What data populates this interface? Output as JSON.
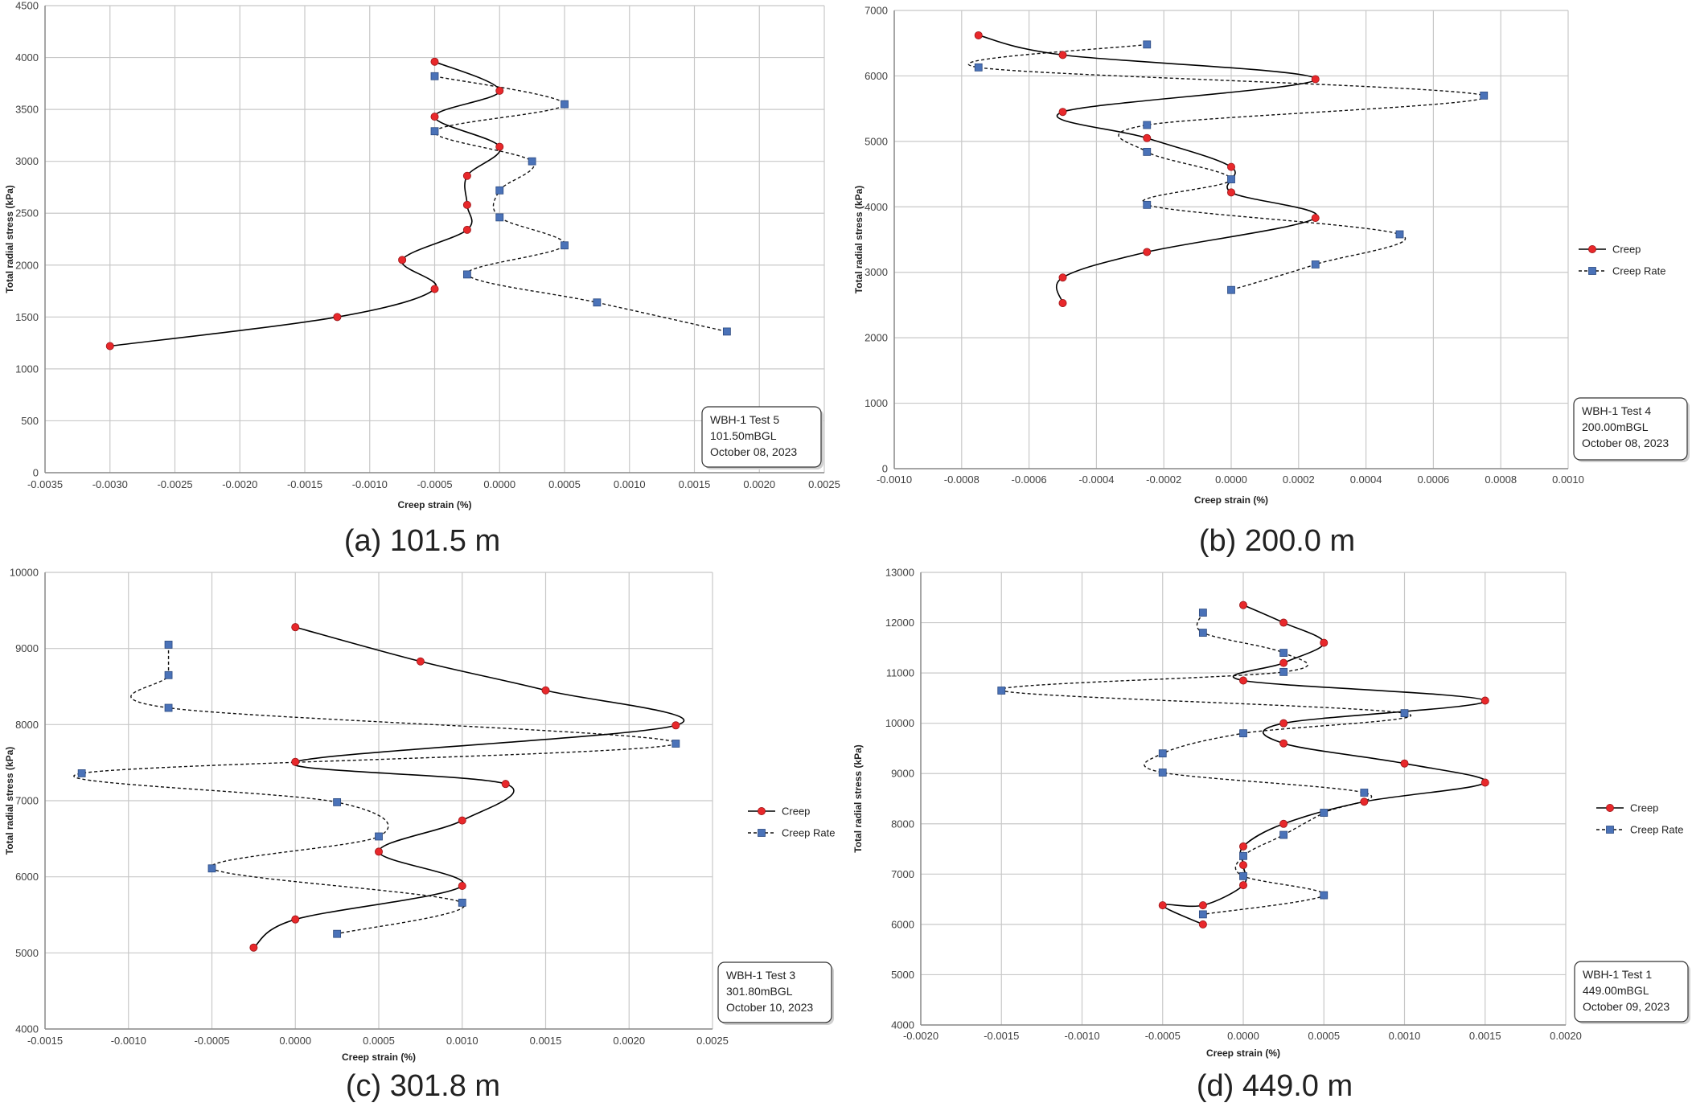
{
  "chart_data": [
    {
      "id": "a",
      "type": "line",
      "caption": "(a) 101.5 m",
      "xlabel": "Creep strain (%)",
      "ylabel": "Total radial stress (kPa)",
      "xlim": [
        -0.0035,
        0.0025
      ],
      "ylim": [
        0,
        4500
      ],
      "xticks": [
        -0.0035,
        -0.003,
        -0.0025,
        -0.002,
        -0.0015,
        -0.001,
        -0.0005,
        0.0,
        0.0005,
        0.001,
        0.0015,
        0.002,
        0.0025
      ],
      "xtick_labels": [
        "-0.0035",
        "-0.0030",
        "-0.0025",
        "-0.0020",
        "-0.0015",
        "-0.0010",
        "-0.0005",
        "0.0000",
        "0.0005",
        "0.0010",
        "0.0015",
        "0.0020",
        "0.0025"
      ],
      "yticks": [
        0,
        500,
        1000,
        1500,
        2000,
        2500,
        3000,
        3500,
        4000,
        4500
      ],
      "ytick_labels": [
        "0",
        "500",
        "1000",
        "1500",
        "2000",
        "2500",
        "3000",
        "3500",
        "4000",
        "4500"
      ],
      "info_box": [
        "WBH-1 Test 5",
        "101.50mBGL",
        "October 08, 2023"
      ],
      "legend": null,
      "series": [
        {
          "name": "Creep",
          "x": [
            -0.0005,
            0.0,
            -0.0005,
            0.0,
            -0.00025,
            -0.00025,
            -0.00025,
            -0.00075,
            -0.0005,
            -0.00125,
            -0.003
          ],
          "y": [
            3960,
            3680,
            3430,
            3140,
            2860,
            2580,
            2340,
            2050,
            1770,
            1500,
            1220
          ]
        },
        {
          "name": "Creep Rate",
          "x": [
            -0.0005,
            0.0005,
            -0.0005,
            0.00025,
            0.0,
            0.0,
            0.0005,
            -0.00025,
            0.00075,
            0.00175
          ],
          "y": [
            3820,
            3550,
            3290,
            3000,
            2720,
            2460,
            2190,
            1910,
            1640,
            1360
          ]
        }
      ]
    },
    {
      "id": "b",
      "type": "line",
      "caption": "(b) 200.0 m",
      "xlabel": "Creep strain (%)",
      "ylabel": "Total radial stress (kPa)",
      "xlim": [
        -0.001,
        0.001
      ],
      "ylim": [
        0,
        7000
      ],
      "xticks": [
        -0.001,
        -0.0008,
        -0.0006,
        -0.0004,
        -0.0002,
        0.0,
        0.0002,
        0.0004,
        0.0006,
        0.0008,
        0.001
      ],
      "xtick_labels": [
        "-0.0010",
        "-0.0008",
        "-0.0006",
        "-0.0004",
        "-0.0002",
        "0.0000",
        "0.0002",
        "0.0004",
        "0.0006",
        "0.0008",
        "0.0010"
      ],
      "yticks": [
        0,
        1000,
        2000,
        3000,
        4000,
        5000,
        6000,
        7000
      ],
      "ytick_labels": [
        "0",
        "1000",
        "2000",
        "3000",
        "4000",
        "5000",
        "6000",
        "7000"
      ],
      "info_box": [
        "WBH-1 Test 4",
        "200.00mBGL",
        "October 08, 2023"
      ],
      "legend": {
        "creep": "Creep",
        "rate": "Creep Rate"
      },
      "series": [
        {
          "name": "Creep",
          "x": [
            -0.00075,
            -0.0005,
            0.00025,
            -0.0005,
            -0.00025,
            0.0,
            0.0,
            0.00025,
            -0.00025,
            -0.0005,
            -0.0005
          ],
          "y": [
            6620,
            6320,
            5950,
            5450,
            5050,
            4610,
            4220,
            3830,
            3310,
            2920,
            2530
          ]
        },
        {
          "name": "Creep Rate",
          "x": [
            -0.00025,
            -0.00075,
            0.00075,
            -0.00025,
            -0.00025,
            0.0,
            -0.00025,
            0.0005,
            0.00025,
            0.0
          ],
          "y": [
            6480,
            6130,
            5700,
            5250,
            4840,
            4420,
            4030,
            3580,
            3120,
            2730
          ]
        }
      ]
    },
    {
      "id": "c",
      "type": "line",
      "caption": "(c) 301.8 m",
      "xlabel": "Creep strain (%)",
      "ylabel": "Total radial stress (kPa)",
      "xlim": [
        -0.0015,
        0.0025
      ],
      "ylim": [
        4000,
        10000
      ],
      "xticks": [
        -0.0015,
        -0.001,
        -0.0005,
        0.0,
        0.0005,
        0.001,
        0.0015,
        0.002,
        0.0025
      ],
      "xtick_labels": [
        "-0.0015",
        "-0.0010",
        "-0.0005",
        "0.0000",
        "0.0005",
        "0.0010",
        "0.0015",
        "0.0020",
        "0.0025"
      ],
      "yticks": [
        4000,
        5000,
        6000,
        7000,
        8000,
        9000,
        10000
      ],
      "ytick_labels": [
        "4000",
        "5000",
        "6000",
        "7000",
        "8000",
        "9000",
        "10000"
      ],
      "info_box": [
        "WBH-1 Test 3",
        "301.80mBGL",
        "October 10, 2023"
      ],
      "legend": {
        "creep": "Creep",
        "rate": "Creep Rate"
      },
      "series": [
        {
          "name": "Creep",
          "x": [
            0.0,
            0.00075,
            0.0015,
            0.00228,
            0.0,
            0.00126,
            0.001,
            0.0005,
            0.001,
            0.0,
            -0.00025
          ],
          "y": [
            9280,
            8830,
            8450,
            7990,
            7510,
            7220,
            6740,
            6330,
            5880,
            5440,
            5070
          ]
        },
        {
          "name": "Creep Rate",
          "x": [
            -0.00076,
            -0.00076,
            -0.00076,
            0.00228,
            -0.00128,
            0.00025,
            0.0005,
            -0.0005,
            0.001,
            0.00025
          ],
          "y": [
            9050,
            8650,
            8220,
            7750,
            7360,
            6980,
            6530,
            6110,
            5660,
            5250
          ]
        }
      ]
    },
    {
      "id": "d",
      "type": "line",
      "caption": "(d) 449.0 m",
      "xlabel": "Creep strain (%)",
      "ylabel": "Total radial stress (kPa)",
      "xlim": [
        -0.002,
        0.002
      ],
      "ylim": [
        4000,
        13000
      ],
      "xticks": [
        -0.002,
        -0.0015,
        -0.001,
        -0.0005,
        0.0,
        0.0005,
        0.001,
        0.0015,
        0.002
      ],
      "xtick_labels": [
        "-0.0020",
        "-0.0015",
        "-0.0010",
        "-0.0005",
        "0.0000",
        "0.0005",
        "0.0010",
        "0.0015",
        "0.0020"
      ],
      "yticks": [
        4000,
        5000,
        6000,
        7000,
        8000,
        9000,
        10000,
        11000,
        12000,
        13000
      ],
      "ytick_labels": [
        "4000",
        "5000",
        "6000",
        "7000",
        "8000",
        "9000",
        "10000",
        "11000",
        "12000",
        "13000"
      ],
      "info_box": [
        "WBH-1 Test 1",
        "449.00mBGL",
        "October 09, 2023"
      ],
      "legend": {
        "creep": "Creep",
        "rate": "Creep Rate"
      },
      "series": [
        {
          "name": "Creep",
          "x": [
            0.0,
            0.00025,
            0.0005,
            0.00025,
            0.0,
            0.0015,
            0.00025,
            0.00025,
            0.001,
            0.0015,
            0.00075,
            0.00025,
            0.0,
            0.0,
            0.0,
            -0.00025,
            -0.0005,
            -0.00025
          ],
          "y": [
            12350,
            12000,
            11600,
            11200,
            10850,
            10450,
            10000,
            9600,
            9200,
            8820,
            8440,
            8000,
            7550,
            7180,
            6780,
            6380,
            6380,
            6000
          ]
        },
        {
          "name": "Creep Rate",
          "x": [
            -0.00025,
            -0.00025,
            0.00025,
            0.00025,
            -0.0015,
            0.001,
            0.0,
            -0.0005,
            -0.0005,
            0.00075,
            0.0005,
            0.00025,
            0.0,
            0.0,
            0.0005,
            -0.00025
          ],
          "y": [
            12200,
            11800,
            11400,
            11020,
            10650,
            10200,
            9800,
            9400,
            9020,
            8620,
            8220,
            7780,
            7360,
            6960,
            6580,
            6200
          ]
        }
      ]
    }
  ],
  "colors": {
    "creep_line": "#000000",
    "creep_marker": "#e8282b",
    "rate_marker": "#4a72b8",
    "grid": "#c8c8c8",
    "axis": "#8c8c8c"
  }
}
